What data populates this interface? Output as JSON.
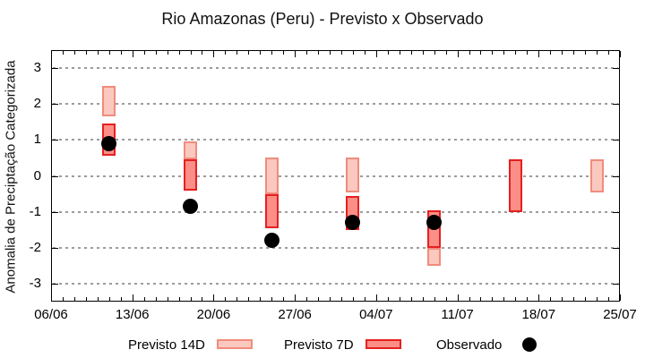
{
  "title": "Rio Amazonas (Peru) - Previsto x Observado",
  "ylabel": "Anomalia de Preciptação Categorizada",
  "colors": {
    "forecast14_fill": "#fbc8bf",
    "forecast14_border": "#f08c7c",
    "forecast7_fill": "#fb8f87",
    "forecast7_border": "#e62020",
    "observed": "#000000",
    "grid": "#9c9c9c",
    "axis": "#000000"
  },
  "legend": [
    {
      "label": "Previsto 14D",
      "swatch": "forecast14"
    },
    {
      "label": "Previsto 7D",
      "swatch": "forecast7"
    },
    {
      "label": "Observado",
      "swatch": "observed-dot"
    }
  ],
  "chart_data": {
    "type": "bar",
    "subtype": "forecast-range-boxes-with-observed-points",
    "title": "Rio Amazonas (Peru) - Previsto x Observado",
    "xlabel": "",
    "ylabel": "Anomalia de Preciptação Categorizada",
    "x_tick_labels": [
      "06/06",
      "13/06",
      "20/06",
      "27/06",
      "04/07",
      "11/07",
      "18/07",
      "25/07"
    ],
    "x_tick_days": [
      0,
      7,
      14,
      21,
      28,
      35,
      42,
      49
    ],
    "x_range_days": [
      0,
      49
    ],
    "y_ticks": [
      3,
      2,
      1,
      0,
      -1,
      -2,
      -3
    ],
    "y_range": [
      -3.5,
      3.5
    ],
    "grid": "horizontal-dotted",
    "legend_position": "bottom-center",
    "series": [
      {
        "name": "Previsto 14D",
        "type": "range-box"
      },
      {
        "name": "Previsto 7D",
        "type": "range-box"
      },
      {
        "name": "Observado",
        "type": "point"
      }
    ],
    "groups": [
      {
        "date": "11/06",
        "day": 5,
        "previsto14": [
          1.65,
          2.5
        ],
        "previsto7": [
          0.55,
          1.45
        ],
        "observado": 0.9
      },
      {
        "date": "18/06",
        "day": 12,
        "previsto14": [
          0.45,
          0.95
        ],
        "previsto7": [
          -0.4,
          0.45
        ],
        "observado": -0.85
      },
      {
        "date": "25/06",
        "day": 19,
        "previsto14": [
          -0.5,
          0.5
        ],
        "previsto7": [
          -1.45,
          -0.5
        ],
        "observado": -1.8
      },
      {
        "date": "02/07",
        "day": 26,
        "previsto14": [
          -0.45,
          0.5
        ],
        "previsto7": [
          -1.5,
          -0.55
        ],
        "observado": -1.3
      },
      {
        "date": "09/07",
        "day": 33,
        "previsto14": [
          -2.5,
          -2.0
        ],
        "previsto7": [
          -2.0,
          -0.95
        ],
        "observado": -1.3
      },
      {
        "date": "16/07",
        "day": 40,
        "previsto14": null,
        "previsto7": [
          -1.0,
          0.45
        ],
        "observado": null
      },
      {
        "date": "23/07",
        "day": 47,
        "previsto14": [
          -0.45,
          0.45
        ],
        "previsto7": null,
        "observado": null
      }
    ]
  }
}
